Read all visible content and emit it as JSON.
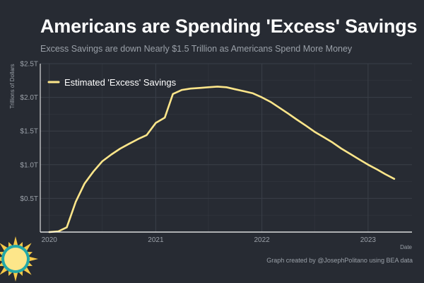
{
  "colors": {
    "background": "#272b33",
    "grid": "#3a3f48",
    "axis": "#ffffff",
    "line": "#fde68a",
    "muted_text": "#9aa0a8",
    "sun_core": "#fde68a",
    "sun_ring": "#23a8a8",
    "sun_rays": "#f7c948"
  },
  "caption": "Graph created by @JosephPolitano using BEA data",
  "logo_icon": "sun-logo-icon",
  "chart_data": {
    "type": "line",
    "title": "Americans are Spending 'Excess' Savings",
    "subtitle": "Excess Savings are down Nearly $1.5 Trillion as Americans Spend More Money",
    "xlabel": "Date",
    "ylabel": "Trillions of Dollars",
    "xlim": [
      "2019-12-01",
      "2023-06-01"
    ],
    "ylim": [
      0,
      2.5
    ],
    "y_ticks": [
      0.5,
      1.0,
      1.5,
      2.0,
      2.5
    ],
    "y_tick_labels": [
      "$0.5T",
      "$1.0T",
      "$1.5T",
      "$2.0T",
      "$2.5T"
    ],
    "x_ticks": [
      "2020-01-01",
      "2021-01-01",
      "2022-01-01",
      "2023-01-01"
    ],
    "x_tick_labels": [
      "2020",
      "2021",
      "2022",
      "2023"
    ],
    "grid": true,
    "legend_position": "top-left",
    "series": [
      {
        "name": "Estimated 'Excess' Savings",
        "x": [
          "2020-01-01",
          "2020-02-01",
          "2020-03-01",
          "2020-04-01",
          "2020-05-01",
          "2020-06-01",
          "2020-07-01",
          "2020-08-01",
          "2020-09-01",
          "2020-10-01",
          "2020-11-01",
          "2020-12-01",
          "2021-01-01",
          "2021-02-01",
          "2021-03-01",
          "2021-04-01",
          "2021-05-01",
          "2021-06-01",
          "2021-07-01",
          "2021-08-01",
          "2021-09-01",
          "2021-10-01",
          "2021-11-01",
          "2021-12-01",
          "2022-01-01",
          "2022-02-01",
          "2022-03-01",
          "2022-04-01",
          "2022-05-01",
          "2022-06-01",
          "2022-07-01",
          "2022-08-01",
          "2022-09-01",
          "2022-10-01",
          "2022-11-01",
          "2022-12-01",
          "2023-01-01",
          "2023-02-01",
          "2023-03-01",
          "2023-04-01"
        ],
        "values": [
          0.0,
          0.01,
          0.07,
          0.45,
          0.72,
          0.9,
          1.05,
          1.15,
          1.24,
          1.31,
          1.38,
          1.44,
          1.62,
          1.7,
          2.05,
          2.11,
          2.13,
          2.14,
          2.15,
          2.16,
          2.15,
          2.12,
          2.09,
          2.06,
          2.0,
          1.93,
          1.85,
          1.76,
          1.67,
          1.58,
          1.49,
          1.41,
          1.33,
          1.24,
          1.16,
          1.08,
          1.0,
          0.93,
          0.86,
          0.79
        ]
      }
    ]
  }
}
